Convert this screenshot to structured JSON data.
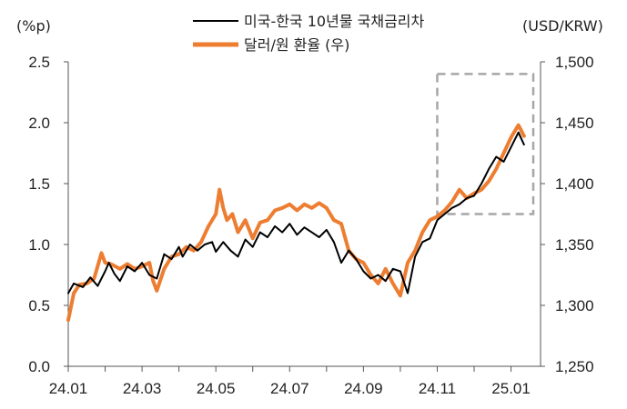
{
  "chart_data": {
    "type": "line",
    "title": "",
    "y_left_unit": "(%p)",
    "y_right_unit": "(USD/KRW)",
    "x_ticks": [
      "24.01",
      "24.03",
      "24.05",
      "24.07",
      "24.09",
      "24.11",
      "25.01"
    ],
    "y_left_ticks": [
      "0.0",
      "0.5",
      "1.0",
      "1.5",
      "2.0",
      "2.5"
    ],
    "y_right_ticks": [
      "1,250",
      "1,300",
      "1,350",
      "1,400",
      "1,450",
      "1,500"
    ],
    "y_left_range": [
      0,
      2.5
    ],
    "y_right_range": [
      1250,
      1500
    ],
    "x_range_months": [
      0,
      12.8
    ],
    "grid": false,
    "legend_position": "top-center",
    "highlight_box": {
      "x_from_month": 10.0,
      "x_to_month": 12.8,
      "y_left_from": 1.25,
      "y_left_to": 2.4
    },
    "series": [
      {
        "name": "미국-한국 10년물 국채금리차",
        "axis": "left",
        "color": "#000000",
        "x": [
          0.0,
          0.15,
          0.4,
          0.6,
          0.8,
          1.0,
          1.1,
          1.25,
          1.4,
          1.6,
          1.8,
          2.0,
          2.2,
          2.4,
          2.6,
          2.8,
          3.0,
          3.1,
          3.3,
          3.5,
          3.7,
          3.9,
          4.0,
          4.2,
          4.4,
          4.6,
          4.8,
          5.0,
          5.2,
          5.4,
          5.6,
          5.8,
          6.0,
          6.2,
          6.4,
          6.6,
          6.8,
          7.0,
          7.2,
          7.4,
          7.6,
          7.8,
          8.0,
          8.2,
          8.4,
          8.6,
          8.8,
          9.0,
          9.2,
          9.4,
          9.6,
          9.8,
          10.0,
          10.2,
          10.4,
          10.6,
          10.8,
          11.0,
          11.2,
          11.4,
          11.6,
          11.8,
          12.0,
          12.2,
          12.35
        ],
        "values": [
          0.6,
          0.68,
          0.65,
          0.73,
          0.66,
          0.78,
          0.85,
          0.76,
          0.7,
          0.82,
          0.78,
          0.85,
          0.75,
          0.72,
          0.92,
          0.88,
          0.98,
          0.9,
          1.0,
          0.95,
          1.0,
          1.02,
          0.94,
          1.02,
          0.95,
          0.9,
          1.04,
          0.98,
          1.1,
          1.06,
          1.15,
          1.1,
          1.17,
          1.08,
          1.14,
          1.1,
          1.06,
          1.12,
          1.02,
          0.85,
          0.95,
          0.88,
          0.78,
          0.72,
          0.75,
          0.7,
          0.8,
          0.78,
          0.6,
          0.9,
          1.02,
          1.05,
          1.2,
          1.25,
          1.3,
          1.33,
          1.38,
          1.4,
          1.5,
          1.62,
          1.72,
          1.68,
          1.8,
          1.92,
          1.82
        ]
      },
      {
        "name": "달러/원 환율 (우)",
        "axis": "right",
        "color": "#ED7D31",
        "x": [
          0.0,
          0.15,
          0.3,
          0.5,
          0.7,
          0.9,
          1.0,
          1.15,
          1.4,
          1.6,
          1.8,
          2.0,
          2.2,
          2.3,
          2.4,
          2.6,
          2.8,
          3.0,
          3.2,
          3.4,
          3.6,
          3.8,
          4.0,
          4.1,
          4.2,
          4.3,
          4.45,
          4.6,
          4.8,
          5.0,
          5.2,
          5.4,
          5.6,
          5.8,
          6.0,
          6.2,
          6.4,
          6.6,
          6.8,
          7.0,
          7.2,
          7.4,
          7.6,
          7.8,
          8.0,
          8.2,
          8.4,
          8.6,
          8.8,
          9.0,
          9.2,
          9.4,
          9.6,
          9.8,
          10.0,
          10.2,
          10.4,
          10.6,
          10.8,
          11.0,
          11.2,
          11.4,
          11.6,
          11.8,
          12.0,
          12.2,
          12.35
        ],
        "values": [
          1288,
          1310,
          1317,
          1318,
          1322,
          1343,
          1335,
          1334,
          1330,
          1334,
          1330,
          1332,
          1335,
          1320,
          1312,
          1330,
          1340,
          1342,
          1348,
          1345,
          1352,
          1365,
          1375,
          1395,
          1380,
          1370,
          1375,
          1360,
          1370,
          1355,
          1368,
          1370,
          1378,
          1380,
          1383,
          1378,
          1383,
          1380,
          1384,
          1380,
          1370,
          1367,
          1345,
          1338,
          1335,
          1325,
          1318,
          1330,
          1318,
          1308,
          1335,
          1345,
          1360,
          1370,
          1373,
          1378,
          1385,
          1395,
          1388,
          1392,
          1395,
          1402,
          1412,
          1425,
          1438,
          1448,
          1439
        ]
      }
    ]
  }
}
